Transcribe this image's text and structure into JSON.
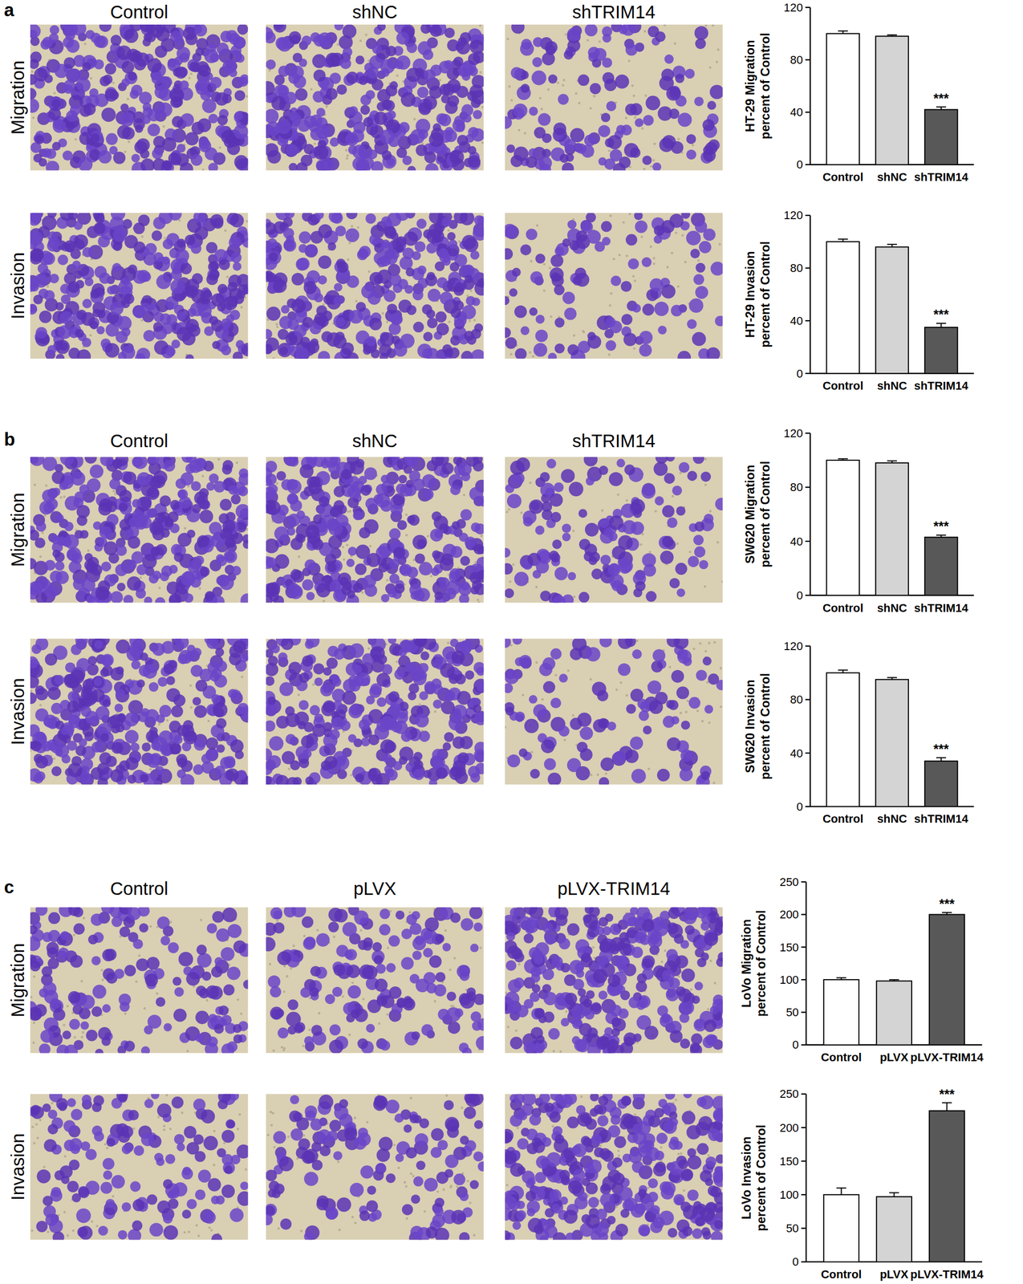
{
  "figure": {
    "panels": [
      {
        "label": "a",
        "columns": [
          "Control",
          "shNC",
          "shTRIM14"
        ],
        "rows": [
          "Migration",
          "Invasion"
        ]
      },
      {
        "label": "b",
        "columns": [
          "Control",
          "shNC",
          "shTRIM14"
        ],
        "rows": [
          "Migration",
          "Invasion"
        ]
      },
      {
        "label": "c",
        "columns": [
          "Control",
          "pLVX",
          "pLVX-TRIM14"
        ],
        "rows": [
          "Migration",
          "Invasion"
        ]
      }
    ]
  },
  "chart_data": [
    {
      "type": "bar",
      "y_label": "HT-29 Migration\npercent of Control",
      "categories": [
        "Control",
        "shNC",
        "shTRIM14"
      ],
      "values": [
        100,
        98,
        42
      ],
      "errors": [
        2,
        1,
        2
      ],
      "colors": [
        "#ffffff",
        "#d4d4d4",
        "#585858"
      ],
      "ylim": [
        0,
        120
      ],
      "yticks": [
        0,
        40,
        80,
        120
      ],
      "annotations": [
        {
          "x": "shTRIM14",
          "text": "***"
        }
      ]
    },
    {
      "type": "bar",
      "y_label": "HT-29 Invasion\npercent of Control",
      "categories": [
        "Control",
        "shNC",
        "shTRIM14"
      ],
      "values": [
        100,
        96,
        35
      ],
      "errors": [
        2,
        2,
        3
      ],
      "colors": [
        "#ffffff",
        "#d4d4d4",
        "#585858"
      ],
      "ylim": [
        0,
        120
      ],
      "yticks": [
        0,
        40,
        80,
        120
      ],
      "annotations": [
        {
          "x": "shTRIM14",
          "text": "***"
        }
      ]
    },
    {
      "type": "bar",
      "y_label": "SW620 Migration\npercent of Control",
      "categories": [
        "Control",
        "shNC",
        "shTRIM14"
      ],
      "values": [
        100,
        98,
        43
      ],
      "errors": [
        1,
        1.5,
        1.5
      ],
      "colors": [
        "#ffffff",
        "#d4d4d4",
        "#585858"
      ],
      "ylim": [
        0,
        120
      ],
      "yticks": [
        0,
        40,
        80,
        120
      ],
      "annotations": [
        {
          "x": "shTRIM14",
          "text": "***"
        }
      ]
    },
    {
      "type": "bar",
      "y_label": "SW620 Invasion\npercent of Control",
      "categories": [
        "Control",
        "shNC",
        "shTRIM14"
      ],
      "values": [
        100,
        95,
        34
      ],
      "errors": [
        2,
        1.5,
        2.5
      ],
      "colors": [
        "#ffffff",
        "#d4d4d4",
        "#585858"
      ],
      "ylim": [
        0,
        120
      ],
      "yticks": [
        0,
        40,
        80,
        120
      ],
      "annotations": [
        {
          "x": "shTRIM14",
          "text": "***"
        }
      ]
    },
    {
      "type": "bar",
      "y_label": "LoVo Migration\npercent of Control",
      "categories": [
        "Control",
        "pLVX",
        "pLVX-TRIM14"
      ],
      "values": [
        100,
        98,
        200
      ],
      "errors": [
        3,
        2,
        3
      ],
      "colors": [
        "#ffffff",
        "#d4d4d4",
        "#585858"
      ],
      "ylim": [
        0,
        250
      ],
      "yticks": [
        0,
        50,
        100,
        150,
        200,
        250
      ],
      "annotations": [
        {
          "x": "pLVX-TRIM14",
          "text": "***"
        }
      ]
    },
    {
      "type": "bar",
      "y_label": "LoVo Invasion\npercent of Control",
      "categories": [
        "Control",
        "pLVX",
        "pLVX-TRIM14"
      ],
      "values": [
        100,
        97,
        225
      ],
      "errors": [
        10,
        6,
        12
      ],
      "colors": [
        "#ffffff",
        "#d4d4d4",
        "#585858"
      ],
      "ylim": [
        0,
        250
      ],
      "yticks": [
        0,
        50,
        100,
        150,
        200,
        250
      ],
      "annotations": [
        {
          "x": "pLVX-TRIM14",
          "text": "***"
        }
      ]
    }
  ]
}
